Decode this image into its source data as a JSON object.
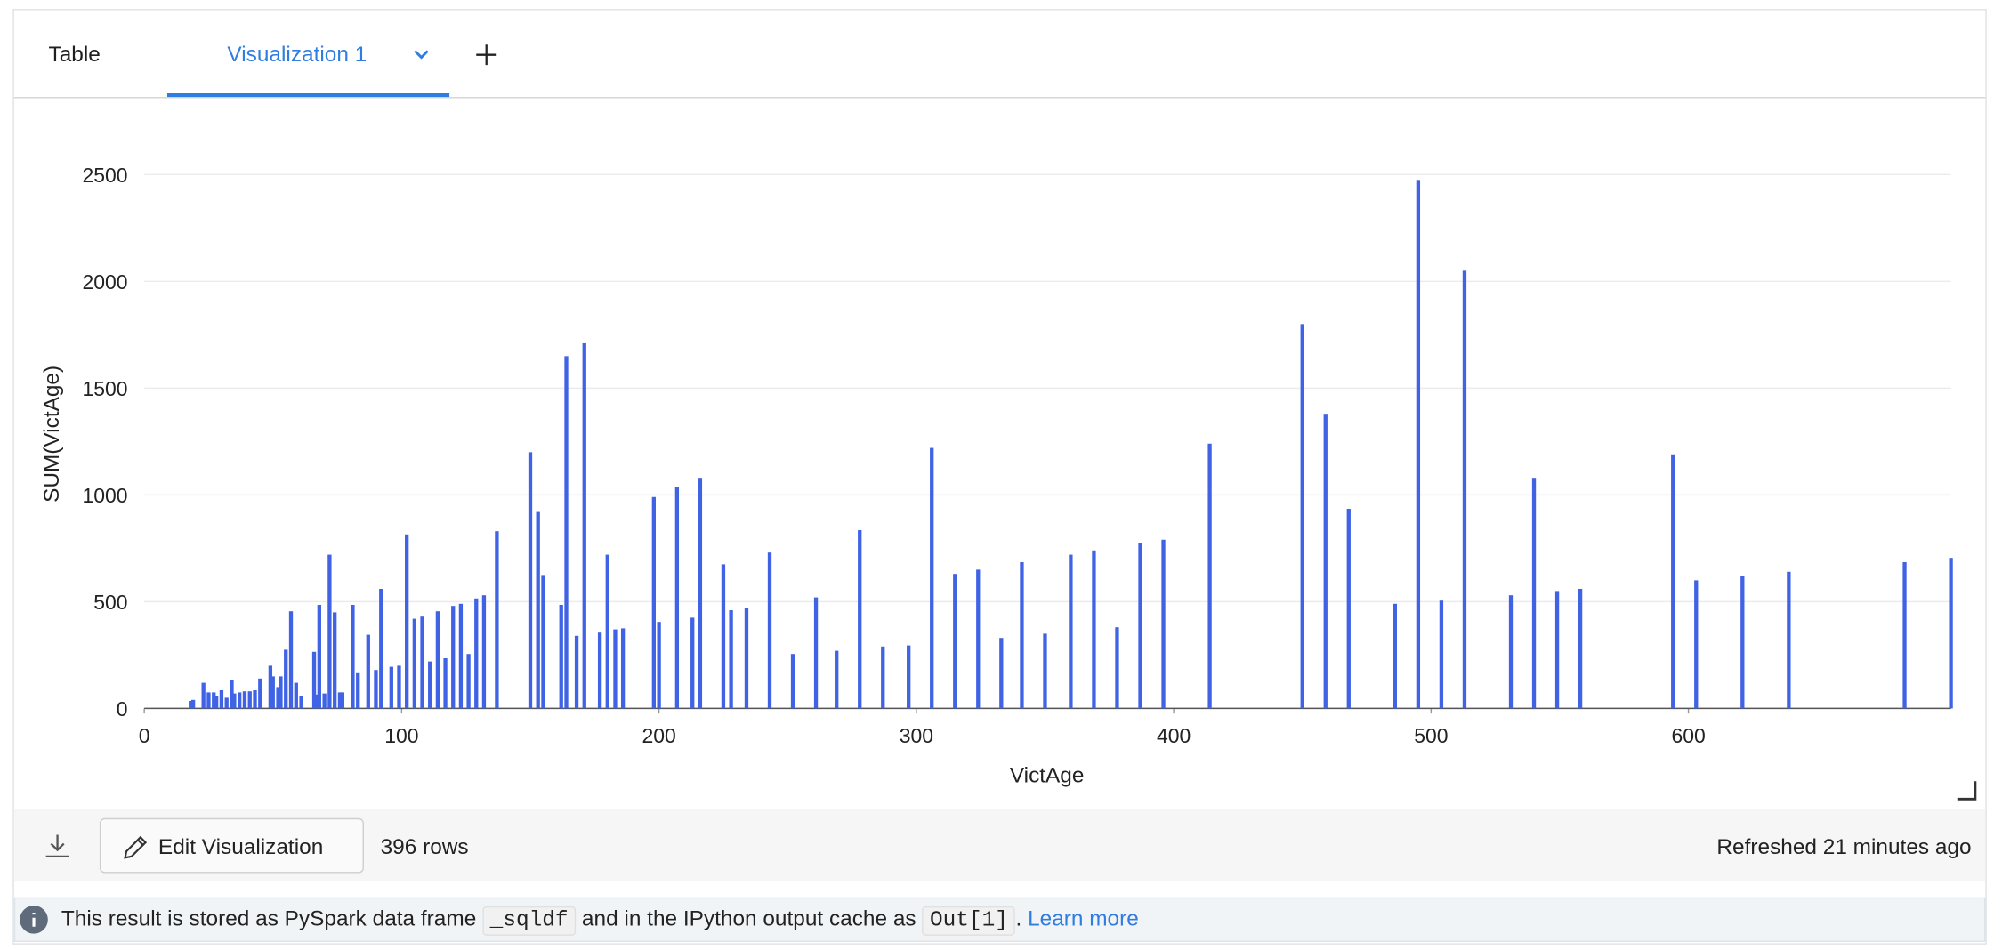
{
  "tabs": {
    "table": "Table",
    "visualization": "Visualization 1"
  },
  "chart_data": {
    "type": "bar",
    "x_label": "VictAge",
    "y_label": "SUM(VictAge)",
    "color": "#4063e6",
    "grid": true,
    "xlim": [
      0,
      702
    ],
    "xticks": [
      0,
      100,
      200,
      300,
      400,
      500,
      600
    ],
    "ylim": [
      0,
      2750
    ],
    "yticks": [
      0,
      500,
      1000,
      1500,
      2000,
      2500
    ],
    "x": [
      18,
      19,
      23,
      25,
      27,
      28,
      30,
      32,
      34,
      35,
      37,
      39,
      41,
      43,
      45,
      49,
      50,
      52,
      53,
      55,
      57,
      59,
      61,
      66,
      67,
      68,
      70,
      72,
      74,
      76,
      77,
      81,
      83,
      87,
      90,
      92,
      96,
      99,
      102,
      105,
      108,
      111,
      114,
      117,
      120,
      123,
      126,
      129,
      132,
      137,
      150,
      153,
      155,
      162,
      164,
      168,
      171,
      177,
      180,
      183,
      186,
      198,
      200,
      207,
      213,
      216,
      225,
      228,
      234,
      243,
      252,
      261,
      269,
      278,
      287,
      297,
      306,
      315,
      324,
      333,
      341,
      350,
      360,
      369,
      378,
      387,
      396,
      414,
      450,
      459,
      468,
      486,
      495,
      504,
      513,
      531,
      540,
      549,
      558,
      594,
      603,
      621,
      639,
      684,
      702
    ],
    "values": [
      35,
      40,
      120,
      75,
      75,
      60,
      85,
      50,
      135,
      70,
      75,
      80,
      80,
      85,
      140,
      200,
      150,
      100,
      150,
      275,
      455,
      120,
      60,
      265,
      65,
      485,
      70,
      720,
      450,
      75,
      75,
      485,
      165,
      345,
      180,
      560,
      195,
      200,
      815,
      420,
      430,
      220,
      455,
      235,
      480,
      490,
      255,
      515,
      530,
      830,
      1200,
      920,
      625,
      485,
      1650,
      340,
      1710,
      355,
      720,
      370,
      375,
      990,
      405,
      1035,
      425,
      1080,
      675,
      460,
      470,
      730,
      255,
      520,
      270,
      835,
      290,
      295,
      1220,
      630,
      650,
      330,
      685,
      350,
      720,
      740,
      380,
      775,
      790,
      1240,
      1800,
      1380,
      935,
      490,
      2475,
      505,
      2050,
      530,
      1080,
      550,
      560,
      1190,
      600,
      620,
      640,
      685,
      705
    ]
  },
  "footer": {
    "edit": "Edit Visualization",
    "rows": "396 rows",
    "refreshed": "Refreshed 21 minutes ago"
  },
  "info": {
    "text1": "This result is stored as PySpark data frame",
    "code1": "_sqldf",
    "text2": "and in the IPython output cache as",
    "code2": "Out[1]",
    "text3": ".",
    "link": "Learn more"
  }
}
